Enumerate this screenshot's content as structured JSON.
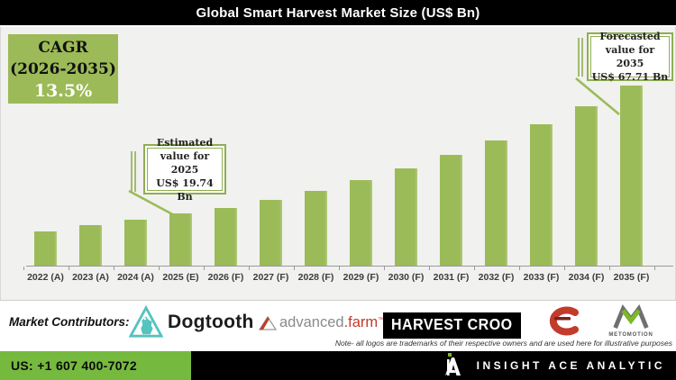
{
  "title": "Global Smart Harvest Market Size (US$ Bn)",
  "colors": {
    "bar_green": "#9bbb59",
    "cagr_green": "#9cba57",
    "footer_green": "#76b93f",
    "chart_bg": "#f1f1ef",
    "callout_border_green": "#8fae52"
  },
  "cagr_box": {
    "title": "CAGR",
    "range": "(2026-2035)",
    "value": "13.5%"
  },
  "callouts": {
    "estimated": {
      "line1": "Estimated",
      "line2": "value for 2025",
      "line3": "US$ 19.74 Bn"
    },
    "forecasted": {
      "line1": "Forecasted",
      "line2": "value for 2035",
      "line3": "US$ 67.71 Bn"
    }
  },
  "chart_data": {
    "type": "bar",
    "title": "Global Smart Harvest Market Size (US$ Bn)",
    "categories": [
      "2022 (A)",
      "2023 (A)",
      "2024 (A)",
      "2025 (E)",
      "2026 (F)",
      "2027 (F)",
      "2028 (F)",
      "2029 (F)",
      "2030 (F)",
      "2031 (F)",
      "2032 (F)",
      "2033 (F)",
      "2034 (F)",
      "2035 (F)"
    ],
    "values": [
      13.0,
      15.2,
      17.1,
      19.74,
      21.7,
      24.6,
      28.0,
      32.0,
      36.5,
      41.5,
      47.0,
      53.0,
      60.0,
      67.71
    ],
    "unit": "US$ Bn",
    "ylim": [
      0,
      70
    ],
    "grid": false,
    "legend": false,
    "bar_color": "#9bbb59",
    "cagr": "13.5% (2026-2035)",
    "annotations": [
      {
        "target": "2025 (E)",
        "text": "Estimated value for 2025 US$ 19.74 Bn"
      },
      {
        "target": "2035 (F)",
        "text": "Forecasted value for 2035 US$ 67.71 Bn"
      }
    ]
  },
  "contributors": {
    "label": "Market Contributors:",
    "logos": {
      "dogtooth": {
        "text": "Dogtooth"
      },
      "advanced_farm": {
        "part1": "advanced",
        "part2": ".farm",
        "tm": "™"
      },
      "harvest_croo": {
        "text": "HARVEST CROO"
      },
      "metomotion": {
        "text": "METOMOTION"
      }
    },
    "note": "Note- all logos are trademarks of their respective owners and are used here for illustrative purposes"
  },
  "footer": {
    "phone": "US: +1 607 400-7072",
    "brand": "INSIGHT ACE ANALYTIC"
  }
}
